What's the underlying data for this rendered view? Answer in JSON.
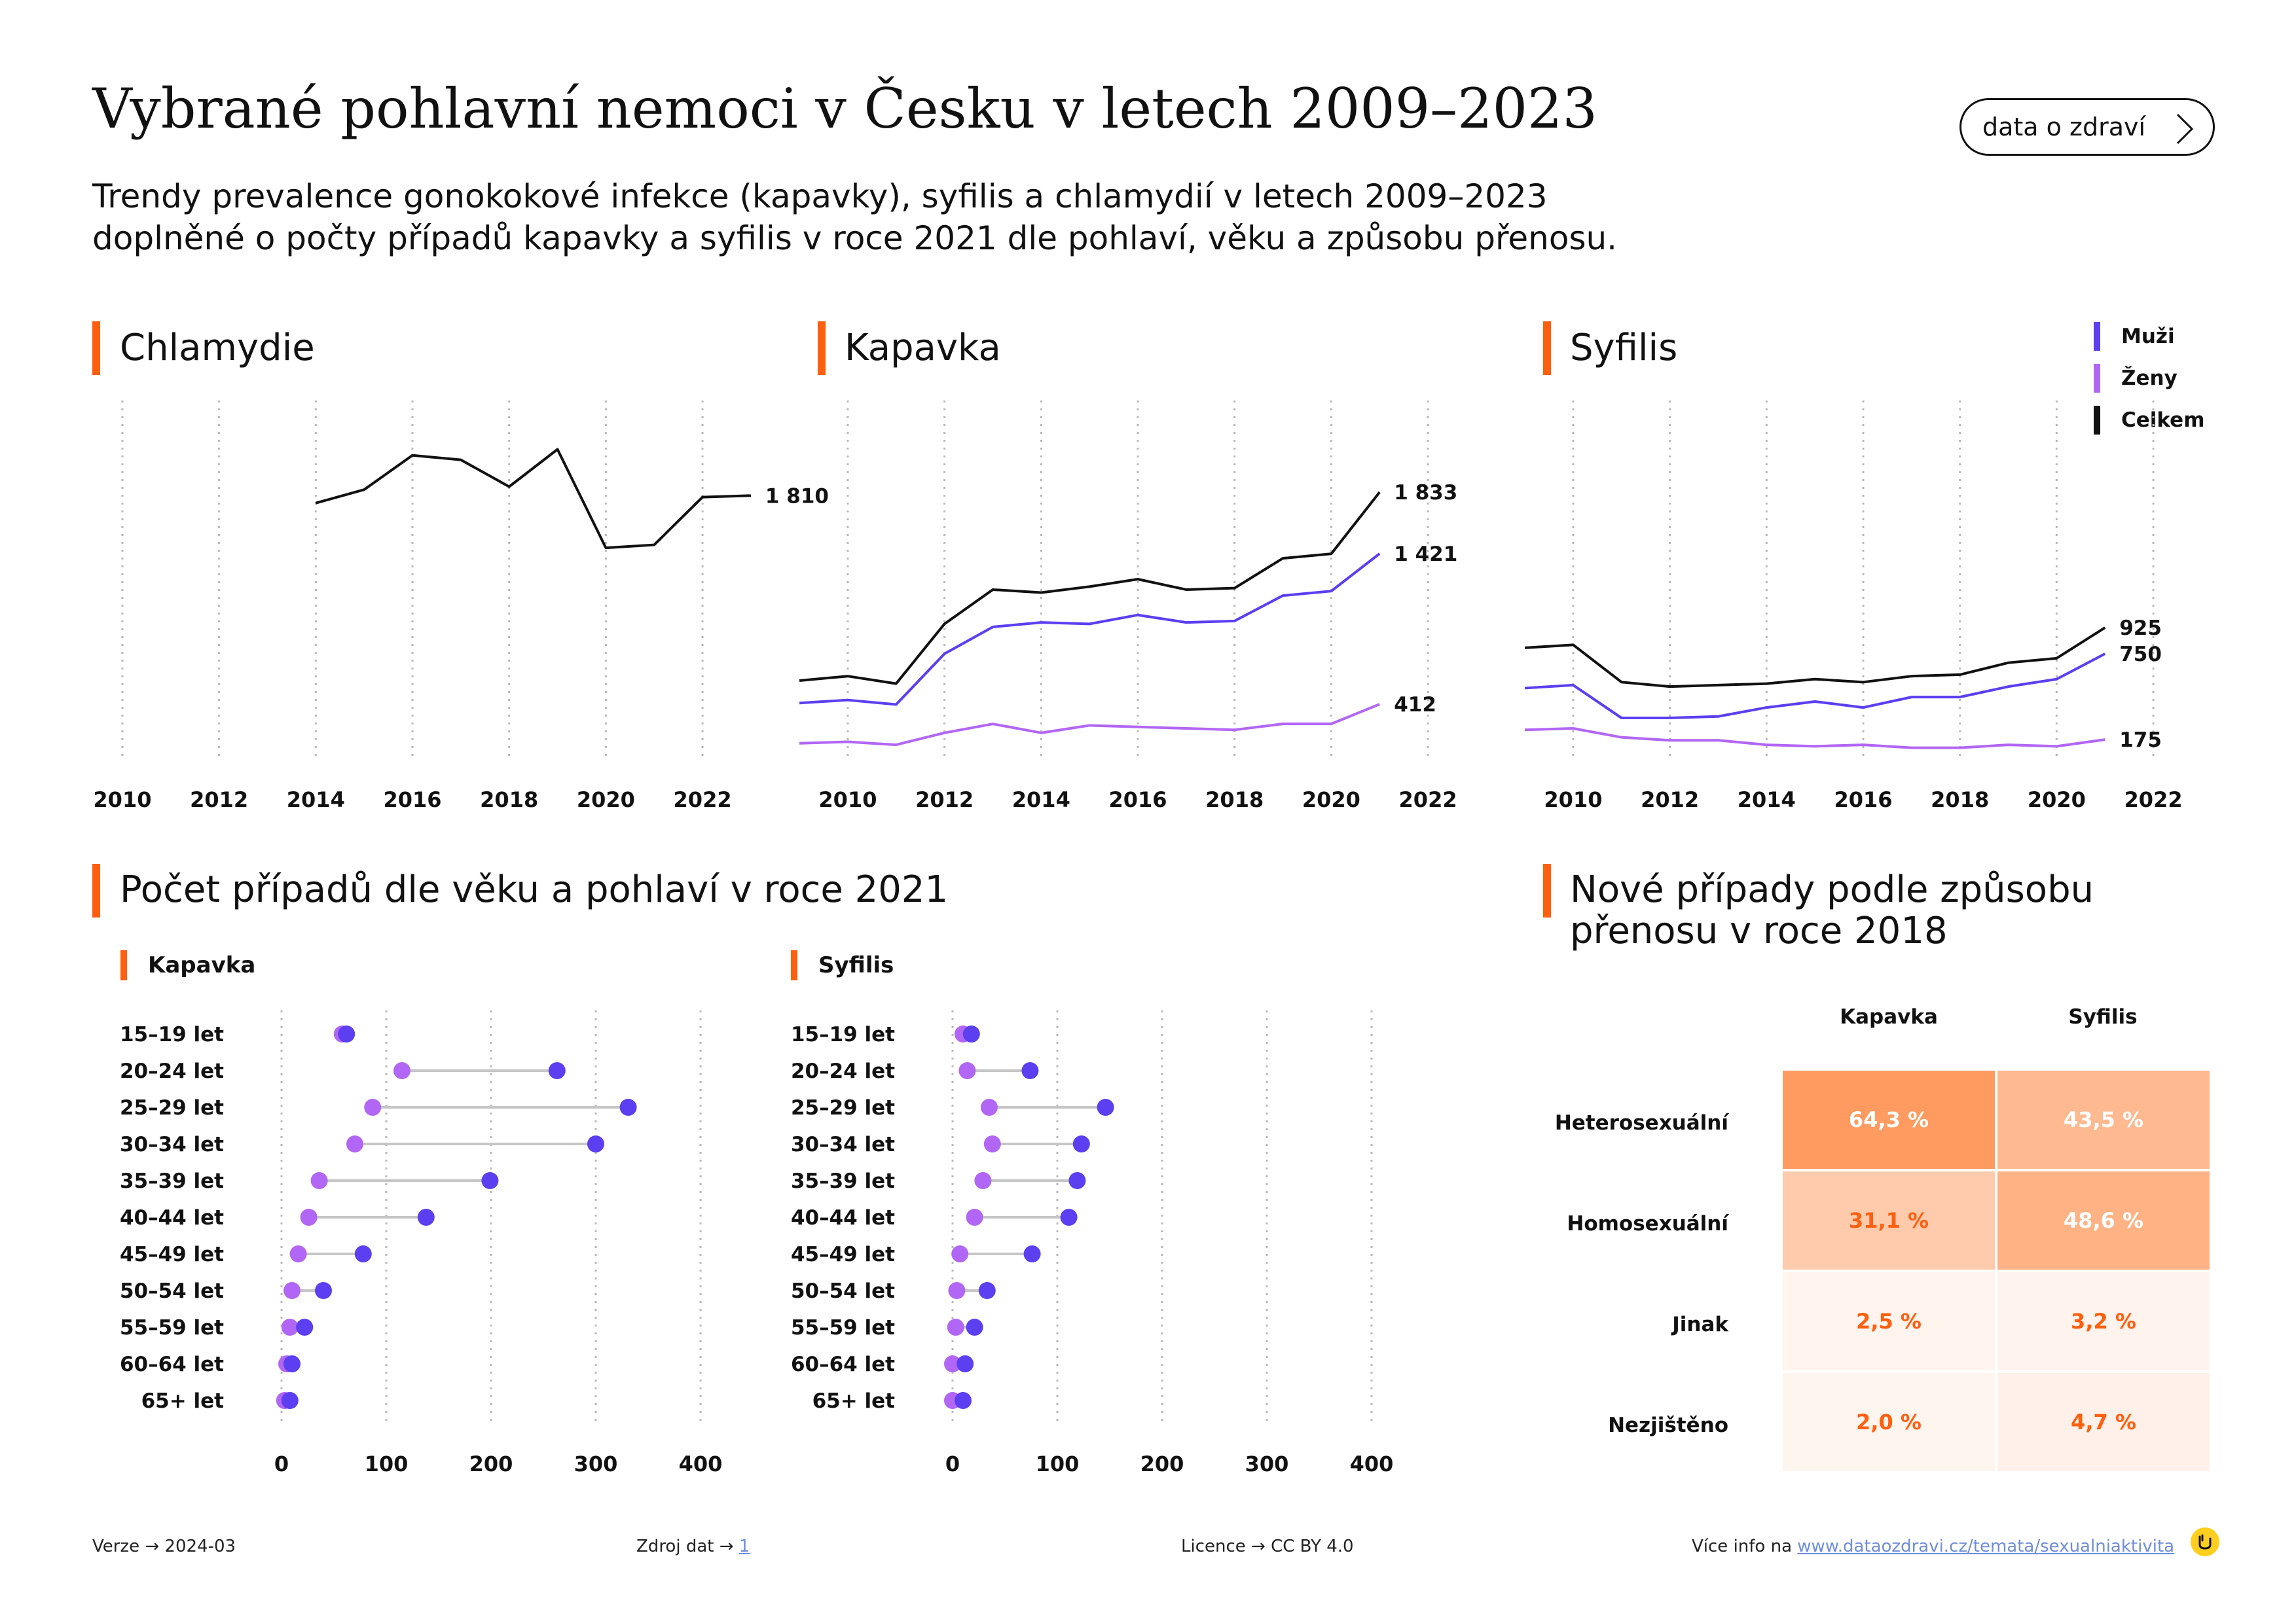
{
  "header": {
    "title": "Vybrané pohlavní nemoci v Česku v letech 2009–2023",
    "subtitle_line1": "Trendy prevalence gonokokové infekce (kapavky), syfilis a chlamydií v letech 2009–2023",
    "subtitle_line2": "doplněné o počty případů kapavky a syfilis v roce 2021 dle pohlaví, věku a způsobu přenosu.",
    "badge_label": "data o zdraví"
  },
  "colors": {
    "accent": "#ff5f0f",
    "muzi": "#5b3ff0",
    "zeny": "#b266f5",
    "celkem": "#111111",
    "grid": "#b8b8b8"
  },
  "legend": [
    {
      "label": "Muži",
      "color": "#5b3ff0"
    },
    {
      "label": "Ženy",
      "color": "#b266f5"
    },
    {
      "label": "Celkem",
      "color": "#111111"
    }
  ],
  "chart_data": [
    {
      "type": "line",
      "title": "Chlamydie",
      "x_ticks": [
        2010,
        2012,
        2014,
        2016,
        2018,
        2020,
        2022
      ],
      "xlim": [
        2009.5,
        2022.5
      ],
      "ylim": [
        0,
        2500
      ],
      "series": [
        {
          "name": "Celkem",
          "x": [
            2014,
            2015,
            2016,
            2017,
            2018,
            2019,
            2020,
            2021,
            2022,
            2023
          ],
          "values": [
            1760,
            1850,
            2080,
            2050,
            1870,
            2120,
            1460,
            1480,
            1800,
            1810
          ]
        }
      ],
      "end_labels": [
        "1 810"
      ]
    },
    {
      "type": "line",
      "title": "Kapavka",
      "x_ticks": [
        2010,
        2012,
        2014,
        2016,
        2018,
        2020,
        2022
      ],
      "xlim": [
        2009.5,
        2022.5
      ],
      "ylim": [
        0,
        2500
      ],
      "series": [
        {
          "name": "Celkem",
          "x": [
            2009,
            2010,
            2011,
            2012,
            2013,
            2014,
            2015,
            2016,
            2017,
            2018,
            2019,
            2020,
            2021
          ],
          "values": [
            570,
            600,
            550,
            950,
            1180,
            1160,
            1200,
            1250,
            1180,
            1190,
            1390,
            1420,
            1833
          ]
        },
        {
          "name": "Muži",
          "x": [
            2009,
            2010,
            2011,
            2012,
            2013,
            2014,
            2015,
            2016,
            2017,
            2018,
            2019,
            2020,
            2021
          ],
          "values": [
            420,
            440,
            410,
            750,
            930,
            960,
            950,
            1010,
            960,
            970,
            1140,
            1170,
            1421
          ]
        },
        {
          "name": "Ženy",
          "x": [
            2009,
            2010,
            2011,
            2012,
            2013,
            2014,
            2015,
            2016,
            2017,
            2018,
            2019,
            2020,
            2021
          ],
          "values": [
            150,
            160,
            140,
            220,
            280,
            220,
            270,
            260,
            250,
            240,
            280,
            280,
            412
          ]
        }
      ],
      "end_labels": [
        "1 833",
        "1 421",
        "412"
      ]
    },
    {
      "type": "line",
      "title": "Syfilis",
      "x_ticks": [
        2010,
        2012,
        2014,
        2016,
        2018,
        2020,
        2022
      ],
      "xlim": [
        2009.5,
        2022.5
      ],
      "ylim": [
        0,
        2500
      ],
      "series": [
        {
          "name": "Celkem",
          "x": [
            2009,
            2010,
            2011,
            2012,
            2013,
            2014,
            2015,
            2016,
            2017,
            2018,
            2019,
            2020,
            2021
          ],
          "values": [
            790,
            810,
            560,
            530,
            540,
            550,
            580,
            560,
            600,
            610,
            690,
            720,
            925
          ]
        },
        {
          "name": "Muži",
          "x": [
            2009,
            2010,
            2011,
            2012,
            2013,
            2014,
            2015,
            2016,
            2017,
            2018,
            2019,
            2020,
            2021
          ],
          "values": [
            520,
            540,
            320,
            320,
            330,
            390,
            430,
            390,
            460,
            460,
            530,
            580,
            750
          ]
        },
        {
          "name": "Ženy",
          "x": [
            2009,
            2010,
            2011,
            2012,
            2013,
            2014,
            2015,
            2016,
            2017,
            2018,
            2019,
            2020,
            2021
          ],
          "values": [
            240,
            250,
            190,
            170,
            170,
            140,
            130,
            140,
            120,
            120,
            140,
            130,
            175
          ]
        }
      ],
      "end_labels": [
        "925",
        "750",
        "175"
      ]
    },
    {
      "type": "scatter",
      "title": "Kapavka",
      "categories": [
        "15–19 let",
        "20–24 let",
        "25–29 let",
        "30–34 let",
        "35–39 let",
        "40–44 let",
        "45–49 let",
        "50–54 let",
        "55–59 let",
        "60–64 let",
        "65+ let"
      ],
      "x_ticks": [
        0,
        100,
        200,
        300,
        400
      ],
      "xlim": [
        0,
        400
      ],
      "series": [
        {
          "name": "Ženy",
          "values": [
            58,
            115,
            87,
            70,
            36,
            26,
            16,
            10,
            8,
            5,
            3
          ]
        },
        {
          "name": "Muži",
          "values": [
            62,
            263,
            331,
            300,
            199,
            138,
            78,
            40,
            22,
            10,
            8
          ]
        }
      ]
    },
    {
      "type": "scatter",
      "title": "Syfilis",
      "categories": [
        "15–19 let",
        "20–24 let",
        "25–29 let",
        "30–34 let",
        "35–39 let",
        "40–44 let",
        "45–49 let",
        "50–54 let",
        "55–59 let",
        "60–64 let",
        "65+ let"
      ],
      "x_ticks": [
        0,
        100,
        200,
        300,
        400
      ],
      "xlim": [
        0,
        400
      ],
      "series": [
        {
          "name": "Ženy",
          "values": [
            10,
            14,
            35,
            38,
            29,
            21,
            7,
            4,
            3,
            0,
            0
          ]
        },
        {
          "name": "Muži",
          "values": [
            18,
            74,
            146,
            123,
            119,
            111,
            76,
            33,
            21,
            12,
            10
          ]
        }
      ]
    },
    {
      "type": "heatmap",
      "title": "Nové případy podle způsobu přenosu v roce 2018",
      "columns": [
        "Kapavka",
        "Syfilis"
      ],
      "rows": [
        "Heterosexuální",
        "Homosexuální",
        "Jinak",
        "Nezjištěno"
      ],
      "values": [
        [
          64.3,
          43.5
        ],
        [
          31.1,
          48.6
        ],
        [
          2.5,
          3.2
        ],
        [
          2.0,
          4.7
        ]
      ],
      "labels": [
        [
          "64,3 %",
          "43,5 %"
        ],
        [
          "31,1 %",
          "48,6 %"
        ],
        [
          "2,5 %",
          "3,2 %"
        ],
        [
          "2,0 %",
          "4,7 %"
        ]
      ]
    }
  ],
  "sections": {
    "age_title": "Počet případů dle věku a pohlaví v roce 2021",
    "transmission_title_line1": "Nové případy podle způsobu",
    "transmission_title_line2": "přenosu v roce 2018"
  },
  "footer": {
    "version": "Verze → 2024-03",
    "source_label": "Zdroj dat →",
    "source_link": "1",
    "license": "Licence → CC BY 4.0",
    "more_label": "Více info na",
    "more_link": "www.dataozdravi.cz/temata/sexualniaktivita"
  }
}
